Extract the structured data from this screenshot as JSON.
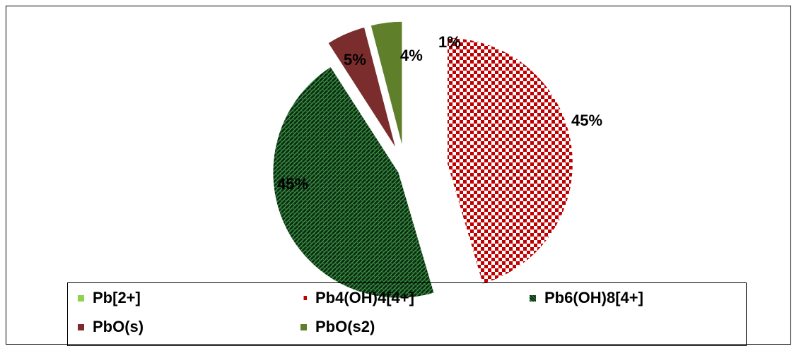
{
  "chart_data": {
    "type": "pie",
    "exploded": true,
    "slices": [
      {
        "label": "Pb[2+]",
        "value": 0,
        "data_label": "",
        "color": "#92d050",
        "pattern": "solid"
      },
      {
        "label": "Pb4(OH)4[4+]",
        "value": 45,
        "data_label": "45%",
        "color": "#c00000",
        "pattern": "checkerboard"
      },
      {
        "label": "Pb6(OH)8[4+]",
        "value": 45,
        "data_label": "45%",
        "color": "#1e6b1e",
        "pattern": "weave"
      },
      {
        "label": "PbO(s)",
        "value": 5,
        "data_label": "5%",
        "color": "#7b2c2c",
        "pattern": "solid"
      },
      {
        "label": "PbO(s2)",
        "value": 4,
        "data_label": "4%",
        "color": "#5f7f2a",
        "pattern": "solid"
      }
    ],
    "extra_labels": [
      "1%"
    ],
    "legend_position": "bottom"
  }
}
